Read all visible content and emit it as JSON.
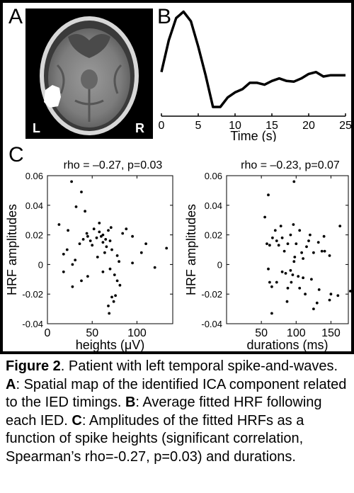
{
  "panels": {
    "a": {
      "label": "A",
      "left_marker": "L",
      "right_marker": "R"
    },
    "b": {
      "label": "B"
    },
    "c": {
      "label": "C"
    }
  },
  "chart_data": [
    {
      "type": "line",
      "panel": "B",
      "xlabel": "Time (s)",
      "xticks": [
        0,
        5,
        10,
        15,
        20,
        25
      ],
      "xlim": [
        0,
        25
      ],
      "ylim": [
        -0.6,
        1.05
      ],
      "x": [
        0,
        1,
        2,
        3,
        4,
        5,
        6,
        7,
        8,
        9,
        10,
        11,
        12,
        13,
        14,
        15,
        16,
        17,
        18,
        19,
        20,
        21,
        22,
        23,
        24,
        25
      ],
      "values": [
        0.05,
        0.55,
        0.9,
        1.0,
        0.85,
        0.45,
        0.0,
        -0.5,
        -0.5,
        -0.35,
        -0.27,
        -0.22,
        -0.12,
        -0.12,
        -0.15,
        -0.09,
        -0.05,
        -0.09,
        -0.1,
        -0.05,
        0.02,
        0.05,
        -0.02,
        0.0,
        0.0,
        0.0
      ]
    },
    {
      "type": "scatter",
      "panel": "C-left",
      "title": "rho = –0.27, p=0.03",
      "xlabel": "heights (μV)",
      "ylabel": "HRF amplitudes",
      "xticks": [
        0,
        50,
        100
      ],
      "yticks": [
        "0.06",
        "0.04",
        "0.02",
        "0",
        "-0.02",
        "-0.04"
      ],
      "xlim": [
        0,
        140
      ],
      "ylim": [
        -0.04,
        0.06
      ],
      "points": [
        [
          27,
          0.056
        ],
        [
          38,
          0.049
        ],
        [
          32,
          0.039
        ],
        [
          13,
          0.027
        ],
        [
          23,
          0.023
        ],
        [
          42,
          0.036
        ],
        [
          52,
          0.024
        ],
        [
          58,
          0.022
        ],
        [
          68,
          0.023
        ],
        [
          71,
          0.025
        ],
        [
          45,
          0.019
        ],
        [
          48,
          0.016
        ],
        [
          55,
          0.018
        ],
        [
          60,
          0.019
        ],
        [
          62,
          0.015
        ],
        [
          65,
          0.017
        ],
        [
          50,
          0.013
        ],
        [
          40,
          0.017
        ],
        [
          36,
          0.014
        ],
        [
          44,
          0.021
        ],
        [
          72,
          0.01
        ],
        [
          78,
          0.006
        ],
        [
          64,
          0.008
        ],
        [
          56,
          0.005
        ],
        [
          31,
          0.003
        ],
        [
          22,
          0.01
        ],
        [
          18,
          0.007
        ],
        [
          28,
          0.0
        ],
        [
          80,
          0.002
        ],
        [
          95,
          0.001
        ],
        [
          105,
          0.008
        ],
        [
          110,
          0.014
        ],
        [
          120,
          -0.002
        ],
        [
          133,
          0.011
        ],
        [
          88,
          0.024
        ],
        [
          95,
          0.019
        ],
        [
          70,
          -0.003
        ],
        [
          62,
          -0.005
        ],
        [
          75,
          -0.007
        ],
        [
          78,
          -0.011
        ],
        [
          45,
          -0.008
        ],
        [
          38,
          -0.011
        ],
        [
          18,
          -0.005
        ],
        [
          28,
          -0.015
        ],
        [
          72,
          -0.022
        ],
        [
          76,
          -0.021
        ],
        [
          74,
          -0.025
        ],
        [
          68,
          -0.028
        ],
        [
          81,
          -0.014
        ],
        [
          69,
          -0.033
        ],
        [
          84,
          0.021
        ],
        [
          58,
          0.028
        ],
        [
          62,
          0.02
        ],
        [
          66,
          0.012
        ],
        [
          70,
          0.016
        ]
      ]
    },
    {
      "type": "scatter",
      "panel": "C-right",
      "title": "rho = –0.23, p=0.07",
      "xlabel": "durations (ms)",
      "ylabel": "HRF amplitudes",
      "xticks": [
        50,
        100,
        150
      ],
      "yticks": [
        "0.06",
        "0.04",
        "0.02",
        "0",
        "-0.02",
        "-0.04"
      ],
      "xlim": [
        0,
        175
      ],
      "ylim": [
        -0.04,
        0.06
      ],
      "points": [
        [
          97,
          0.056
        ],
        [
          60,
          0.047
        ],
        [
          55,
          0.032
        ],
        [
          78,
          0.026
        ],
        [
          96,
          0.027
        ],
        [
          70,
          0.023
        ],
        [
          80,
          0.018
        ],
        [
          92,
          0.02
        ],
        [
          105,
          0.023
        ],
        [
          120,
          0.02
        ],
        [
          163,
          0.026
        ],
        [
          140,
          0.019
        ],
        [
          132,
          0.015
        ],
        [
          66,
          0.018
        ],
        [
          72,
          0.016
        ],
        [
          88,
          0.014
        ],
        [
          100,
          0.014
        ],
        [
          115,
          0.012
        ],
        [
          58,
          0.014
        ],
        [
          62,
          0.013
        ],
        [
          83,
          0.009
        ],
        [
          108,
          0.008
        ],
        [
          125,
          0.008
        ],
        [
          137,
          0.009
        ],
        [
          141,
          0.009
        ],
        [
          148,
          0.006
        ],
        [
          110,
          0.004
        ],
        [
          97,
          0.002
        ],
        [
          60,
          -0.003
        ],
        [
          80,
          -0.005
        ],
        [
          85,
          -0.006
        ],
        [
          95,
          -0.007
        ],
        [
          92,
          -0.004
        ],
        [
          103,
          -0.008
        ],
        [
          110,
          -0.009
        ],
        [
          122,
          -0.01
        ],
        [
          72,
          -0.012
        ],
        [
          62,
          -0.012
        ],
        [
          65,
          -0.015
        ],
        [
          88,
          -0.016
        ],
        [
          105,
          -0.016
        ],
        [
          133,
          -0.017
        ],
        [
          150,
          -0.02
        ],
        [
          148,
          -0.024
        ],
        [
          160,
          -0.021
        ],
        [
          178,
          -0.018
        ],
        [
          65,
          -0.033
        ],
        [
          130,
          -0.026
        ],
        [
          125,
          -0.03
        ],
        [
          113,
          -0.02
        ],
        [
          87,
          -0.025
        ],
        [
          93,
          -0.012
        ],
        [
          98,
          0.005
        ],
        [
          118,
          0.016
        ],
        [
          75,
          0.013
        ]
      ]
    }
  ],
  "caption": {
    "figure_label": "Figure 2",
    "intro": ". Patient with left temporal spike-and-waves. ",
    "a_label": "A",
    "a_text": ": Spatial map of the identified ICA component related to the IED timings. ",
    "b_label": "B",
    "b_text": ": Average fitted HRF following each IED. ",
    "c_label": "C",
    "c_text": ": Amplitudes of the fitted HRFs as a function of spike heights (significant correlation, Spearman’s rho=-0.27, p=0.03) and durations."
  }
}
